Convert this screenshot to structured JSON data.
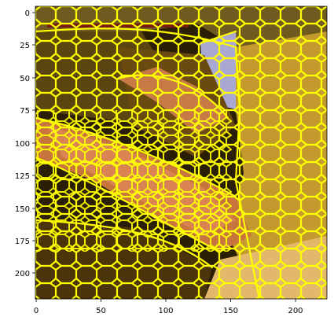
{
  "chart_data": {
    "type": "image",
    "x_range": [
      0,
      224
    ],
    "y_range": [
      224,
      0
    ],
    "x_ticks": [
      "0",
      "50",
      "100",
      "150",
      "200"
    ],
    "y_ticks": [
      "0",
      "25",
      "50",
      "75",
      "100",
      "125",
      "150",
      "175",
      "200"
    ],
    "grid": false,
    "overlay": "superpixel segmentation boundaries",
    "boundary_color": "#ffff00"
  },
  "colors": {
    "boundary": "#ffff00",
    "dark": "#1a1200",
    "olive": "#7a5a10",
    "gold": "#c9a030",
    "amber": "#b0781a",
    "salmon": "#d98a5a",
    "lavender": "#a8a8d0",
    "maroon": "#7a1a10"
  }
}
